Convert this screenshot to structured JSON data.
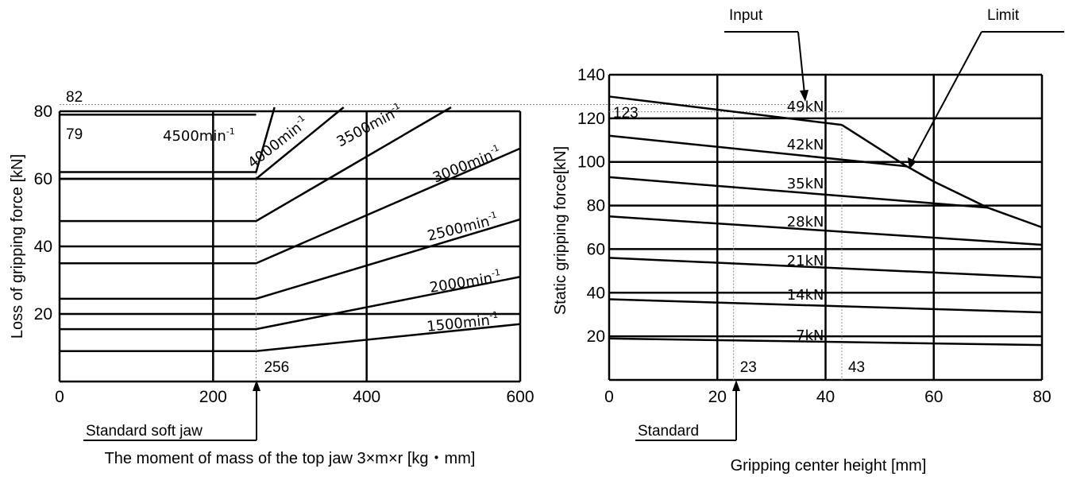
{
  "chart_data": [
    {
      "type": "line",
      "xlabel": "The moment of mass of the top jaw 3×m×r [kg・mm]",
      "ylabel": "Loss of gripping force [kN]",
      "xlim": [
        0,
        600
      ],
      "ylim": [
        0,
        80
      ],
      "xticks": [
        "0",
        "200",
        "400",
        "600"
      ],
      "yticks": [
        "20",
        "40",
        "60",
        "80"
      ],
      "grid": true,
      "series": [
        {
          "name": "4500min-1",
          "x": [
            0,
            256
          ],
          "y": [
            79,
            79
          ]
        },
        {
          "name": "4000min-1",
          "x": [
            0,
            256,
            280
          ],
          "y": [
            62,
            62,
            82
          ]
        },
        {
          "name": "3500min-1",
          "x": [
            0,
            256,
            370
          ],
          "y": [
            60,
            60,
            82
          ]
        },
        {
          "name": "3000min-1",
          "x": [
            0,
            256,
            510
          ],
          "y": [
            47.5,
            47.5,
            82
          ]
        },
        {
          "name": "2500min-1",
          "x": [
            0,
            256,
            600
          ],
          "y": [
            35,
            35,
            69
          ]
        },
        {
          "name": "2000min-1",
          "x": [
            0,
            256,
            600
          ],
          "y": [
            24.5,
            24.5,
            48
          ]
        },
        {
          "name": "1500min-1",
          "x": [
            0,
            256,
            600
          ],
          "y": [
            15.5,
            15.5,
            31
          ]
        },
        {
          "name": "",
          "x": [
            0,
            256,
            600
          ],
          "y": [
            9,
            9,
            17
          ]
        }
      ],
      "annotations": [
        {
          "text": "82",
          "kind": "value",
          "value": 82
        },
        {
          "text": "79",
          "kind": "value",
          "value": 79
        },
        {
          "text": "256",
          "kind": "value",
          "value": 256
        },
        {
          "text": "Standard soft jaw",
          "kind": "pointer",
          "x": 256
        }
      ]
    },
    {
      "type": "line",
      "xlabel": "Gripping center height [mm]",
      "ylabel": "Static gripping force[kN]",
      "xlim": [
        0,
        80
      ],
      "ylim": [
        0,
        140
      ],
      "xticks": [
        "0",
        "20",
        "40",
        "60",
        "80"
      ],
      "yticks": [
        "20",
        "40",
        "60",
        "80",
        "100",
        "120",
        "140"
      ],
      "grid": true,
      "series": [
        {
          "name": "49kN",
          "x": [
            0,
            43
          ],
          "y": [
            130,
            117
          ]
        },
        {
          "name": "42kN",
          "x": [
            0,
            55
          ],
          "y": [
            112,
            98
          ]
        },
        {
          "name": "35kN",
          "x": [
            0,
            70
          ],
          "y": [
            93,
            79
          ]
        },
        {
          "name": "28kN",
          "x": [
            0,
            80
          ],
          "y": [
            75,
            62
          ]
        },
        {
          "name": "21kN",
          "x": [
            0,
            80
          ],
          "y": [
            56,
            47
          ]
        },
        {
          "name": "14kN",
          "x": [
            0,
            80
          ],
          "y": [
            37,
            31
          ]
        },
        {
          "name": "7kN",
          "x": [
            0,
            80
          ],
          "y": [
            19,
            16
          ]
        },
        {
          "name": "Limit",
          "x": [
            43,
            55,
            60,
            70,
            80
          ],
          "y": [
            117,
            98,
            91,
            79,
            70
          ]
        }
      ],
      "annotations": [
        {
          "text": "123",
          "kind": "value",
          "value": 123
        },
        {
          "text": "23",
          "kind": "value",
          "value": 23
        },
        {
          "text": "43",
          "kind": "value",
          "value": 43
        },
        {
          "text": "Input",
          "kind": "pointer"
        },
        {
          "text": "Limit",
          "kind": "pointer"
        },
        {
          "text": "Standard",
          "kind": "pointer",
          "x": 23
        }
      ]
    }
  ],
  "labels": {
    "left_curves": [
      "4500min",
      "4000min",
      "3500min",
      "3000min",
      "2500min",
      "2000min",
      "1500min"
    ],
    "left_curve_suffix": "-1",
    "right_curves": [
      "49kN",
      "42kN",
      "35kN",
      "28kN",
      "21kN",
      "14kN",
      "7kN"
    ]
  }
}
